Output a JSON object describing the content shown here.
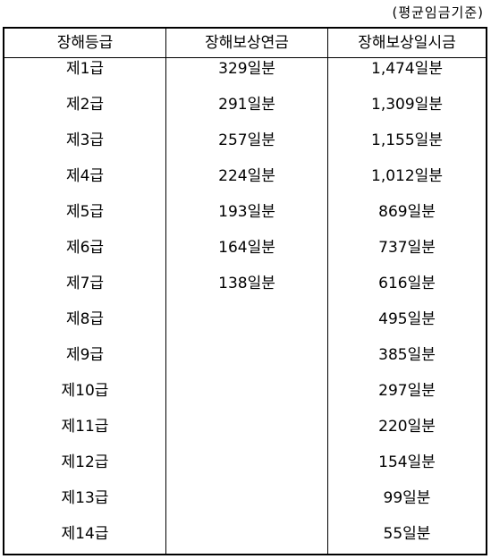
{
  "caption": "(평균임금기준)",
  "headers": [
    "장해등급",
    "장해보상연금",
    "장해보상일시금"
  ],
  "rows": [
    {
      "grade": "제1급",
      "pension": "329일분",
      "lump_sum": "1,474일분"
    },
    {
      "grade": "제2급",
      "pension": "291일분",
      "lump_sum": "1,309일분"
    },
    {
      "grade": "제3급",
      "pension": "257일분",
      "lump_sum": "1,155일분"
    },
    {
      "grade": "제4급",
      "pension": "224일분",
      "lump_sum": "1,012일분"
    },
    {
      "grade": "제5급",
      "pension": "193일분",
      "lump_sum": "869일분"
    },
    {
      "grade": "제6급",
      "pension": "164일분",
      "lump_sum": "737일분"
    },
    {
      "grade": "제7급",
      "pension": "138일분",
      "lump_sum": "616일분"
    },
    {
      "grade": "제8급",
      "pension": "",
      "lump_sum": "495일분"
    },
    {
      "grade": "제9급",
      "pension": "",
      "lump_sum": "385일분"
    },
    {
      "grade": "제10급",
      "pension": "",
      "lump_sum": "297일분"
    },
    {
      "grade": "제11급",
      "pension": "",
      "lump_sum": "220일분"
    },
    {
      "grade": "제12급",
      "pension": "",
      "lump_sum": "154일분"
    },
    {
      "grade": "제13급",
      "pension": "",
      "lump_sum": "99일분"
    },
    {
      "grade": "제14급",
      "pension": "",
      "lump_sum": "55일분"
    }
  ]
}
